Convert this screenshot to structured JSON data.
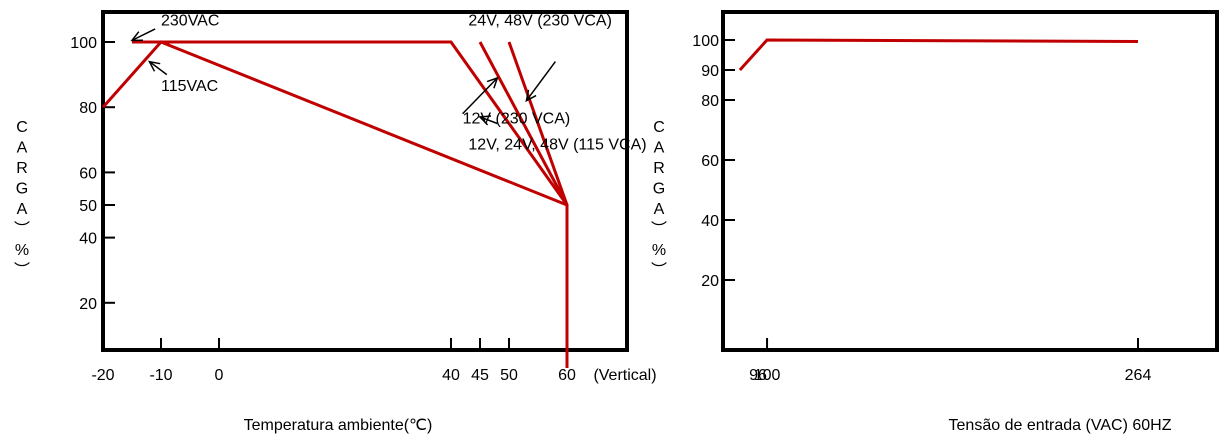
{
  "colors": {
    "curve": "#c00000",
    "frame": "#000000",
    "background": "#ffffff"
  },
  "chart_data": [
    {
      "type": "line",
      "title": "",
      "xlabel": "Temperatura ambiente(℃)",
      "ylabel_chars": [
        "C",
        "A",
        "R",
        "G",
        "A",
        "︶",
        "%",
        "︶"
      ],
      "x_tick_labels": [
        {
          "label": "-20",
          "value": -20
        },
        {
          "label": "-10",
          "value": -10
        },
        {
          "label": "0",
          "value": 0
        },
        {
          "label": "40",
          "value": 40
        },
        {
          "label": "45",
          "value": 45
        },
        {
          "label": "50",
          "value": 50
        },
        {
          "label": "60",
          "value": 60
        },
        {
          "label": "(Vertical)",
          "value": 70
        }
      ],
      "x_ticks": [
        -10,
        0,
        40,
        45,
        50,
        60
      ],
      "y_tick_labels": [
        {
          "label": "100",
          "value": 100
        },
        {
          "label": "80",
          "value": 80
        },
        {
          "label": "60",
          "value": 60
        },
        {
          "label": "50",
          "value": 50
        },
        {
          "label": "40",
          "value": 40
        },
        {
          "label": "20",
          "value": 20
        }
      ],
      "y_ticks": [
        100,
        80,
        60,
        50,
        40,
        20
      ],
      "xlim": [
        -20,
        70
      ],
      "ylim": [
        0,
        110
      ],
      "series": [
        {
          "x": [
            -20,
            -10,
            60,
            60
          ],
          "y": [
            80,
            100,
            50,
            0
          ]
        },
        {
          "x": [
            -15,
            40,
            60
          ],
          "y": [
            100,
            100,
            50
          ]
        },
        {
          "x": [
            45,
            60
          ],
          "y": [
            100,
            50
          ]
        },
        {
          "x": [
            50,
            60
          ],
          "y": [
            100,
            50
          ]
        }
      ],
      "annotations": [
        {
          "text": "230VAC",
          "text_at": [
            -10,
            105
          ],
          "arrow_from": [
            -11,
            104
          ],
          "arrow_to": [
            -15,
            100.5
          ]
        },
        {
          "text": "115VAC",
          "text_at": [
            -10,
            85
          ],
          "arrow_from": [
            -9,
            90
          ],
          "arrow_to": [
            -12,
            94
          ]
        },
        {
          "text": "24V, 48V (230 VCA)",
          "text_at": [
            43,
            105
          ],
          "arrow_from": [
            58,
            94
          ],
          "arrow_to": [
            53,
            82
          ]
        },
        {
          "text": "12V (230 VCA)",
          "text_at": [
            42,
            75
          ],
          "arrow_from": [
            42,
            78
          ],
          "arrow_to": [
            48,
            89
          ]
        },
        {
          "text": "12V, 24V, 48V (115 VCA)",
          "text_at": [
            43,
            67
          ],
          "arrow_from": [
            48,
            75
          ],
          "arrow_to": [
            45,
            77
          ]
        }
      ]
    },
    {
      "type": "line",
      "title": "",
      "xlabel": "Tensão de entrada (VAC) 60HZ",
      "ylabel_chars": [
        "C",
        "A",
        "R",
        "G",
        "A",
        "︶",
        "%",
        "︶"
      ],
      "x_tick_labels": [
        {
          "label": "96",
          "value": 96
        },
        {
          "label": "100",
          "value": 100
        },
        {
          "label": "264",
          "value": 264
        }
      ],
      "x_ticks": [
        100,
        264
      ],
      "y_tick_labels": [
        {
          "label": "100",
          "value": 100
        },
        {
          "label": "90",
          "value": 90
        },
        {
          "label": "80",
          "value": 80
        },
        {
          "label": "60",
          "value": 60
        },
        {
          "label": "40",
          "value": 40
        },
        {
          "label": "20",
          "value": 20
        }
      ],
      "y_ticks": [
        100,
        90,
        80,
        60,
        40,
        20
      ],
      "xlim": [
        88,
        277
      ],
      "ylim": [
        0,
        110
      ],
      "series": [
        {
          "x": [
            88,
            100,
            264
          ],
          "y": [
            90,
            100,
            99.5
          ]
        }
      ]
    }
  ]
}
